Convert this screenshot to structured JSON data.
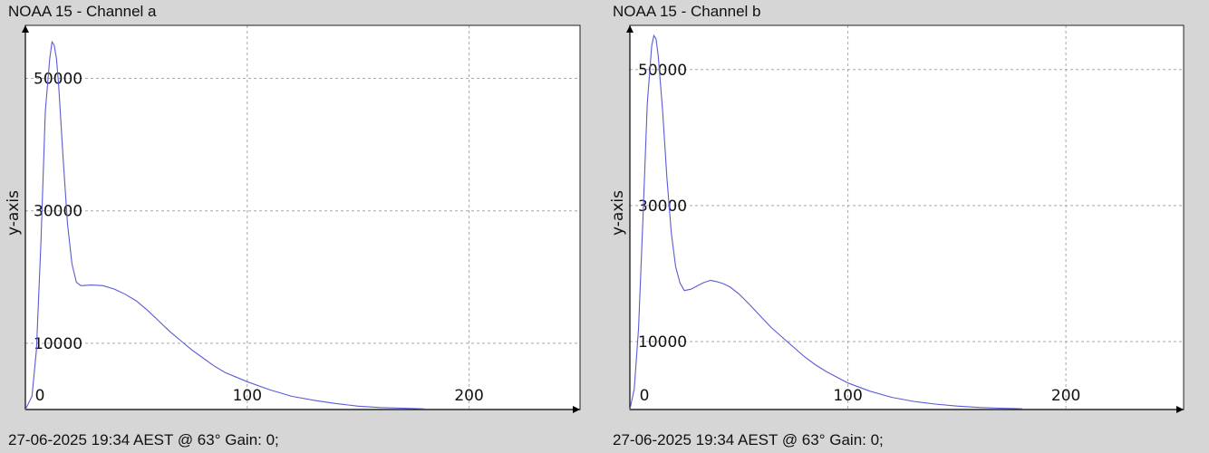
{
  "charts": [
    {
      "title": "NOAA 15 - Channel a",
      "footer": "27-06-2025 19:34 AEST @ 63° Gain: 0;",
      "chart_data": {
        "type": "line",
        "title": "NOAA 15 - Channel a",
        "xlabel": "",
        "ylabel": "y-axis",
        "xlim": [
          0,
          250
        ],
        "ylim": [
          0,
          58000
        ],
        "xticks": [
          0,
          100,
          200
        ],
        "yticks": [
          10000,
          30000,
          50000
        ],
        "grid": true,
        "series": [
          {
            "x": [
              0,
              3,
              5,
              7,
              9,
              11,
              12,
              13,
              14,
              15,
              17,
              19,
              21,
              23,
              25,
              30,
              35,
              40,
              45,
              50,
              55,
              60,
              65,
              70,
              75,
              80,
              85,
              90,
              100,
              110,
              120,
              130,
              140,
              150,
              160,
              170,
              180
            ],
            "y": [
              0,
              2000,
              9000,
              25000,
              45000,
              53000,
              55500,
              55000,
              53000,
              49000,
              38000,
              28000,
              22000,
              19200,
              18700,
              18800,
              18700,
              18200,
              17400,
              16400,
              15000,
              13400,
              11800,
              10400,
              9000,
              7800,
              6600,
              5600,
              4200,
              3000,
              2000,
              1400,
              900,
              500,
              300,
              200,
              100
            ]
          }
        ]
      }
    },
    {
      "title": "NOAA 15 - Channel b",
      "footer": "27-06-2025 19:34 AEST @ 63° Gain: 0;",
      "chart_data": {
        "type": "line",
        "title": "NOAA 15 - Channel b",
        "xlabel": "",
        "ylabel": "y-axis",
        "xlim": [
          0,
          254
        ],
        "ylim": [
          0,
          56500
        ],
        "xticks": [
          0,
          100,
          200
        ],
        "yticks": [
          10000,
          30000,
          50000
        ],
        "grid": true,
        "series": [
          {
            "x": [
              0,
              2,
              4,
              6,
              8,
              10,
              11,
              12,
              13,
              15,
              17,
              19,
              21,
              23,
              25,
              28,
              31,
              34,
              37,
              40,
              43,
              46,
              50,
              55,
              60,
              65,
              70,
              75,
              80,
              85,
              90,
              100,
              110,
              120,
              130,
              140,
              150,
              160,
              170,
              180
            ],
            "y": [
              0,
              3000,
              12000,
              28000,
              45000,
              53500,
              55000,
              54500,
              52000,
              44000,
              34000,
              26000,
              21000,
              18600,
              17500,
              17700,
              18200,
              18700,
              19000,
              18800,
              18500,
              18000,
              17000,
              15400,
              13700,
              12000,
              10600,
              9200,
              7800,
              6600,
              5600,
              3900,
              2700,
              1800,
              1200,
              800,
              500,
              300,
              200,
              100
            ]
          }
        ]
      }
    }
  ]
}
